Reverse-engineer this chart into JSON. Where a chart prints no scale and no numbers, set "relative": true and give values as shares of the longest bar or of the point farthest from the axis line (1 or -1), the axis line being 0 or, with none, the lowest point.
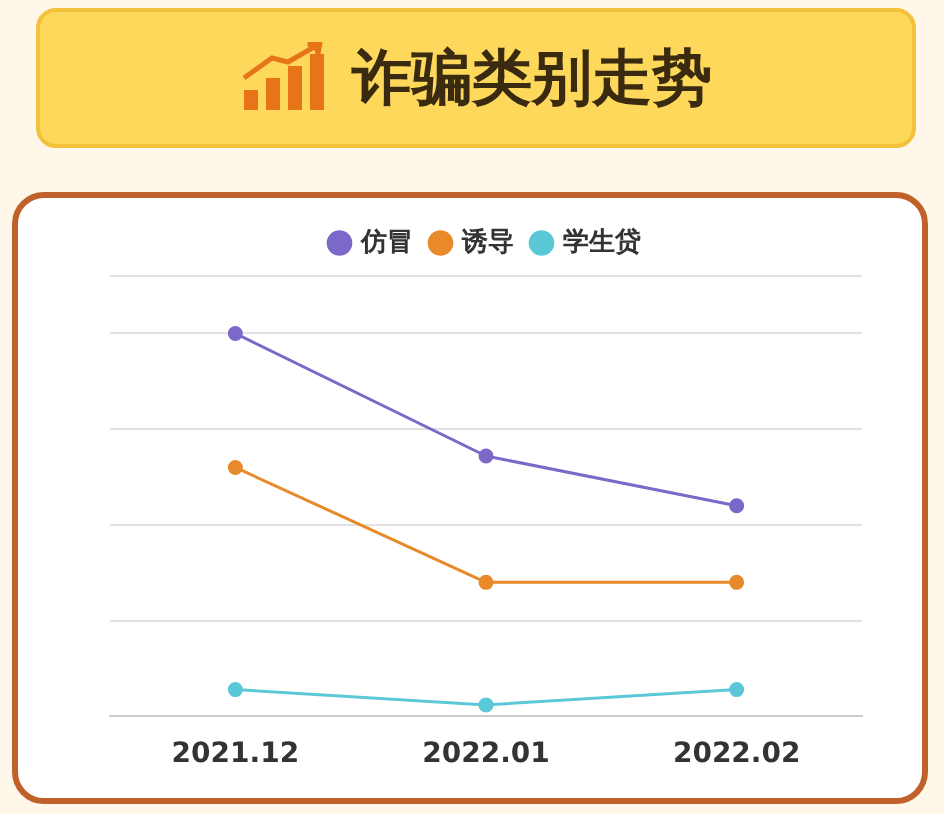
{
  "chart_data": {
    "type": "line",
    "title": "诈骗类别走势",
    "relative": true,
    "categories": [
      "2021.12",
      "2022.01",
      "2022.02"
    ],
    "series": [
      {
        "name": "仿冒",
        "color": "#7b68c8",
        "values": [
          1,
          0.68,
          0.55
        ]
      },
      {
        "name": "诱导",
        "color": "#e8892a",
        "values": [
          0.65,
          0.35,
          0.35
        ]
      },
      {
        "name": "学生贷",
        "color": "#5bc8d8",
        "values": [
          0.07,
          0.03,
          0.07
        ]
      }
    ],
    "legend": "top",
    "grid": "y",
    "marker": "circle",
    "line_style": "solid"
  }
}
